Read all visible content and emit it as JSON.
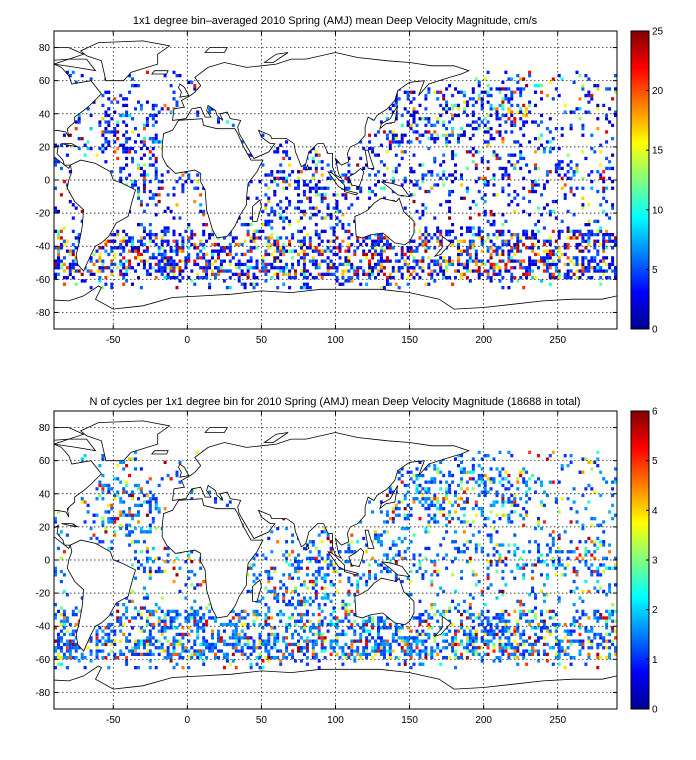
{
  "chart_data": [
    {
      "type": "heatmap",
      "title": "1x1 degree bin–averaged 2010 Spring (AMJ) mean Deep Velocity Magnitude, cm/s",
      "xlabel": "",
      "ylabel": "",
      "xlim": [
        -90,
        290
      ],
      "ylim": [
        -90,
        90
      ],
      "x_ticks": [
        -50,
        0,
        50,
        100,
        150,
        200,
        250
      ],
      "y_ticks": [
        -80,
        -60,
        -40,
        -20,
        0,
        20,
        40,
        60,
        80
      ],
      "grid": true,
      "colorbar": {
        "min": 0,
        "max": 25,
        "ticks": [
          0,
          5,
          10,
          15,
          20,
          25
        ],
        "colormap": "jet",
        "placement": "right"
      }
    },
    {
      "type": "heatmap",
      "title": "N of cycles per 1x1 degree bin for 2010 Spring (AMJ) mean Deep Velocity Magnitude (18688 in total)",
      "xlabel": "",
      "ylabel": "",
      "xlim": [
        -90,
        290
      ],
      "ylim": [
        -90,
        90
      ],
      "x_ticks": [
        -50,
        0,
        50,
        100,
        150,
        200,
        250
      ],
      "y_ticks": [
        -80,
        -60,
        -40,
        -20,
        0,
        20,
        40,
        60,
        80
      ],
      "grid": true,
      "colorbar": {
        "min": 0,
        "max": 6,
        "ticks": [
          0,
          1,
          2,
          3,
          4,
          5,
          6
        ],
        "colormap": "jet",
        "placement": "right"
      }
    }
  ],
  "colors": {
    "land_fill": "#ffffff",
    "coast": "#000000",
    "background": "#ffffff"
  }
}
